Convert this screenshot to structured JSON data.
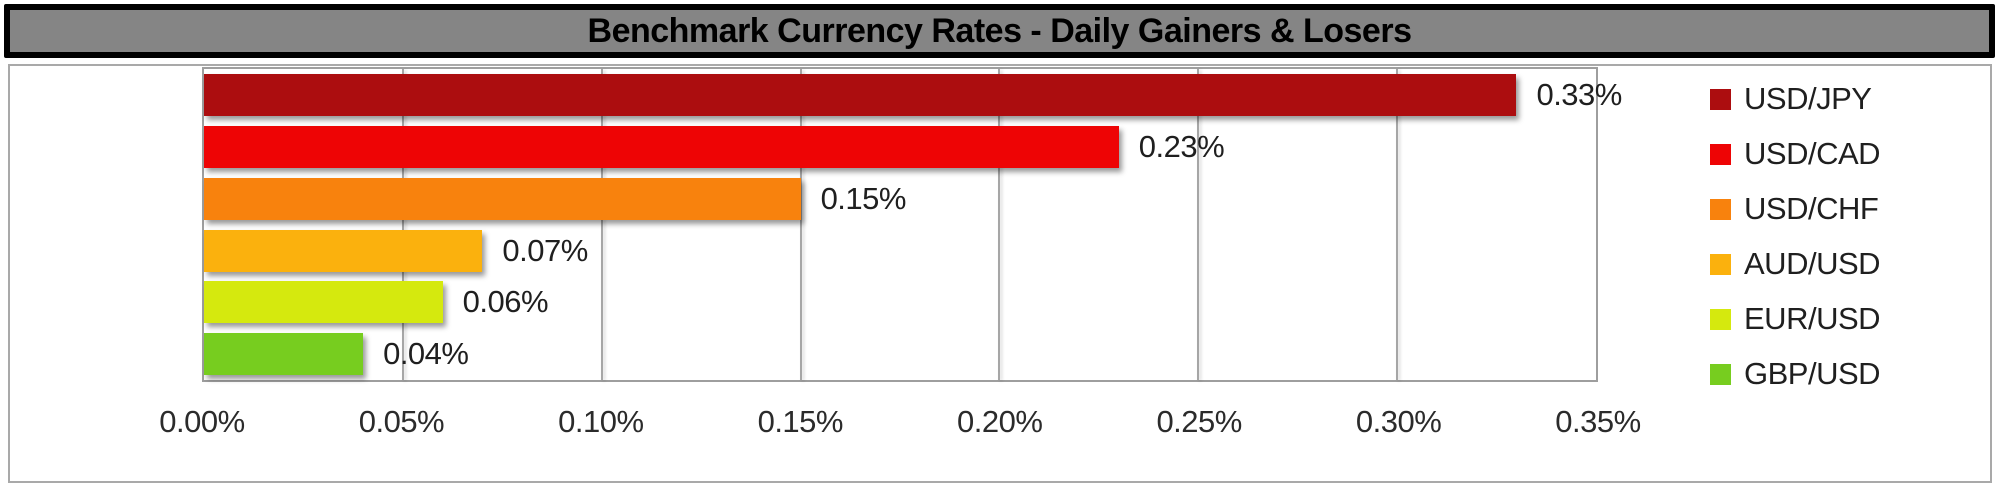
{
  "title": "Benchmark Currency Rates - Daily Gainers & Losers",
  "chart_data": {
    "type": "bar",
    "orientation": "horizontal",
    "title": "Benchmark Currency Rates - Daily Gainers & Losers",
    "series": [
      {
        "name": "USD/JPY",
        "value": 0.33,
        "label": "0.33%",
        "color": "#AC0D0F"
      },
      {
        "name": "USD/CAD",
        "value": 0.23,
        "label": "0.23%",
        "color": "#EE0405"
      },
      {
        "name": "USD/CHF",
        "value": 0.15,
        "label": "0.15%",
        "color": "#F8820D"
      },
      {
        "name": "AUD/USD",
        "value": 0.07,
        "label": "0.07%",
        "color": "#FBB10D"
      },
      {
        "name": "EUR/USD",
        "value": 0.06,
        "label": "0.06%",
        "color": "#D5E90E"
      },
      {
        "name": "GBP/USD",
        "value": 0.04,
        "label": "0.04%",
        "color": "#77CD1F"
      }
    ],
    "x_axis": {
      "min": 0,
      "max": 0.35,
      "step": 0.05,
      "tick_labels": [
        "0.00%",
        "0.05%",
        "0.10%",
        "0.15%",
        "0.20%",
        "0.25%",
        "0.30%",
        "0.35%"
      ]
    },
    "grid": true,
    "legend_position": "right",
    "data_labels": true
  },
  "colors": {
    "title_bar_bg": "#858585",
    "title_border": "#000000",
    "title_text": "#000000",
    "chart_bg": "#FFFFFF",
    "plot_border": "#9E9E9E",
    "grid_line": "#A6A6A6",
    "axis_text": "#2B2B2B"
  }
}
